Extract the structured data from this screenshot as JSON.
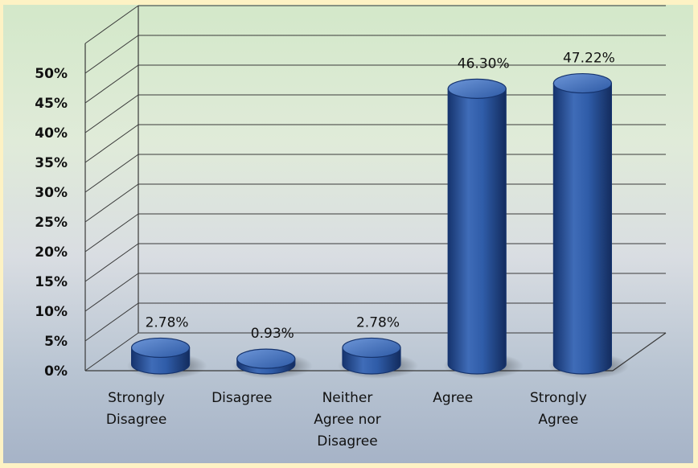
{
  "chart_data": {
    "type": "bar",
    "categories": [
      [
        "Strongly",
        "Disagree"
      ],
      [
        "Disagree"
      ],
      [
        "Neither",
        "Agree nor",
        "Disagree"
      ],
      [
        "Agree"
      ],
      [
        "Strongly",
        "Agree"
      ]
    ],
    "values": [
      2.78,
      0.93,
      2.78,
      46.3,
      47.22
    ],
    "data_labels": [
      "2.78%",
      "0.93%",
      "2.78%",
      "46.30%",
      "47.22%"
    ],
    "y_ticks": [
      "0%",
      "5%",
      "10%",
      "15%",
      "20%",
      "25%",
      "30%",
      "35%",
      "40%",
      "45%",
      "50%"
    ],
    "ylim": [
      0,
      55
    ],
    "grid": true,
    "colors": {
      "bar": "#2f5ca8",
      "bar_dark": "#16346e",
      "bar_light": "#5b86cf",
      "grid": "#3a3a3a"
    }
  }
}
